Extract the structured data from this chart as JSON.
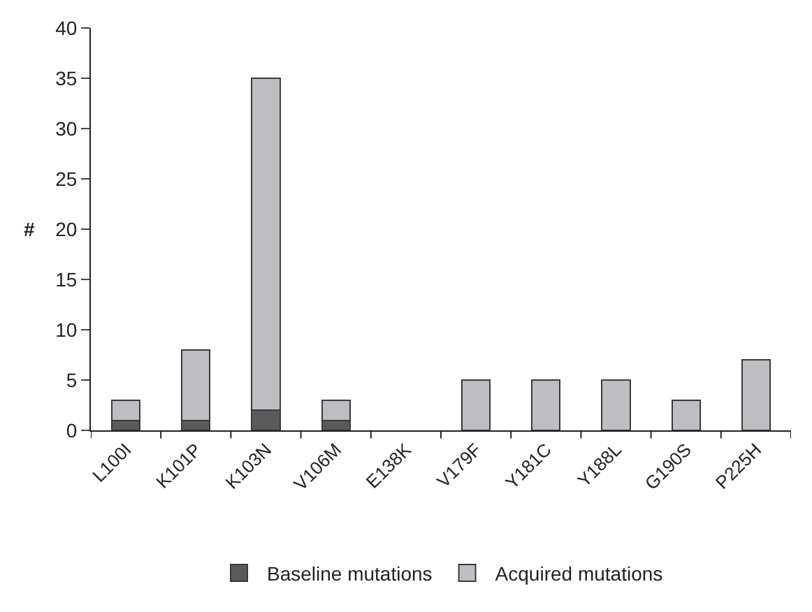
{
  "chart_data": {
    "type": "bar",
    "stacked": true,
    "ylabel": "#",
    "categories": [
      "L100I",
      "K101P",
      "K103N",
      "V106M",
      "E138K",
      "V179F",
      "Y181C",
      "Y188L",
      "G190S",
      "P225H"
    ],
    "series": [
      {
        "name": "Baseline mutations",
        "color": "#5a5a5a",
        "values": [
          1,
          1,
          2,
          1,
          0,
          0,
          0,
          0,
          0,
          0
        ]
      },
      {
        "name": "Acquired mutations",
        "color": "#bdbdc2",
        "values": [
          2,
          7,
          33,
          2,
          0,
          5,
          5,
          5,
          3,
          7
        ]
      }
    ],
    "ylim": [
      0,
      40
    ],
    "yticks": [
      0,
      5,
      10,
      15,
      20,
      25,
      30,
      35,
      40
    ],
    "legend": "bottom"
  }
}
